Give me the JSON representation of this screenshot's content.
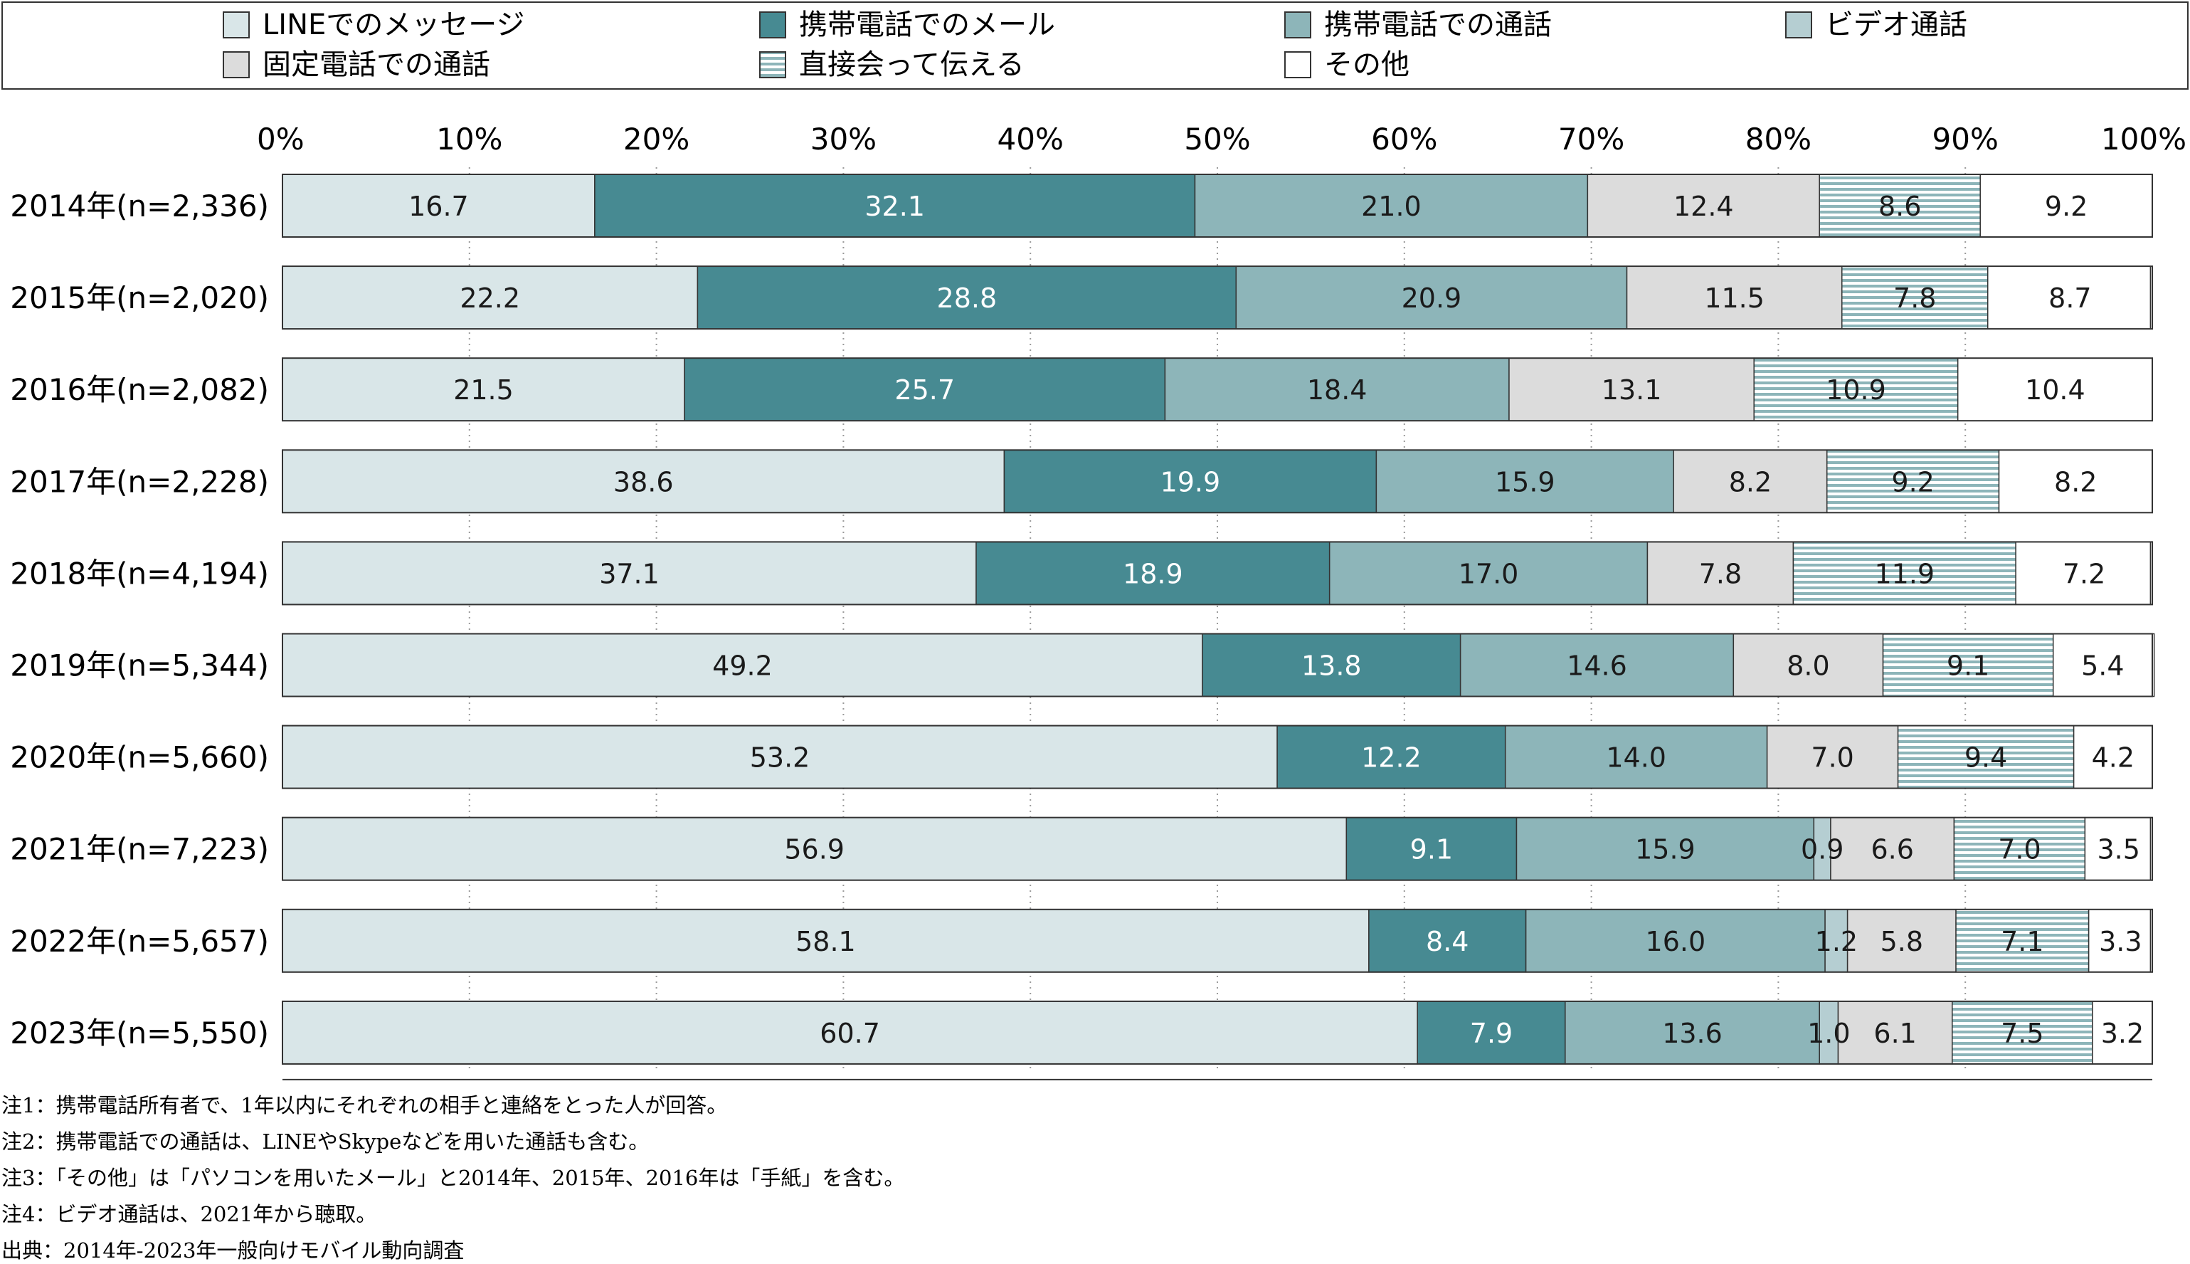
{
  "chart_data": {
    "type": "bar",
    "orientation": "horizontal",
    "stacked": true,
    "percent_scale": true,
    "xlim": [
      0,
      100
    ],
    "x_ticks": [
      "0%",
      "10%",
      "20%",
      "30%",
      "40%",
      "50%",
      "60%",
      "70%",
      "80%",
      "90%",
      "100%"
    ],
    "grid": "vertical dotted lines",
    "legend_position": "top",
    "categories": [
      "2014年(n=2,336)",
      "2015年(n=2,020)",
      "2016年(n=2,082)",
      "2017年(n=2,228)",
      "2018年(n=4,194)",
      "2019年(n=5,344)",
      "2020年(n=5,660)",
      "2021年(n=7,223)",
      "2022年(n=5,657)",
      "2023年(n=5,550)"
    ],
    "series": [
      {
        "name": "LINEでのメッセージ",
        "color": "#d9e6e8",
        "pattern": "solid",
        "values": [
          16.7,
          22.2,
          21.5,
          38.6,
          37.1,
          49.2,
          53.2,
          56.9,
          58.1,
          60.7
        ]
      },
      {
        "name": "携帯電話でのメール",
        "color": "#478a92",
        "pattern": "solid",
        "values": [
          32.1,
          28.8,
          25.7,
          19.9,
          18.9,
          13.8,
          12.2,
          9.1,
          8.4,
          7.9
        ]
      },
      {
        "name": "携帯電話での通話",
        "color": "#8db5b9",
        "pattern": "solid",
        "values": [
          21.0,
          20.9,
          18.4,
          15.9,
          17.0,
          14.6,
          14.0,
          15.9,
          16.0,
          13.6
        ]
      },
      {
        "name": "ビデオ通話",
        "color": "#b5ced2",
        "pattern": "solid",
        "values": [
          null,
          null,
          null,
          null,
          null,
          null,
          null,
          0.9,
          1.2,
          1.0
        ]
      },
      {
        "name": "固定電話での通話",
        "color": "#dcdcdc",
        "pattern": "solid",
        "values": [
          12.4,
          11.5,
          13.1,
          8.2,
          7.8,
          8.0,
          7.0,
          6.6,
          5.8,
          6.1
        ]
      },
      {
        "name": "直接会って伝える",
        "color": "#8db5b9",
        "pattern": "horizontal-stripes",
        "values": [
          8.6,
          7.8,
          10.9,
          9.2,
          11.9,
          9.1,
          9.4,
          7.0,
          7.1,
          7.5
        ]
      },
      {
        "name": "その他",
        "color": "#ffffff",
        "pattern": "solid",
        "values": [
          9.2,
          8.7,
          10.4,
          8.2,
          7.2,
          5.4,
          4.2,
          3.5,
          3.3,
          3.2
        ]
      }
    ],
    "notes": [
      "注1：携帯電話所有者で、1年以内にそれぞれの相手と連絡をとった人が回答。",
      "注2：携帯電話での通話は、LINEやSkypeなどを用いた通話も含む。",
      "注3：「その他」は「パソコンを用いたメール」と2014年、2015年、2016年は「手紙」を含む。",
      "注4：ビデオ通話は、2021年から聴取。",
      "出典：2014年-2023年一般向けモバイル動向調査"
    ]
  }
}
